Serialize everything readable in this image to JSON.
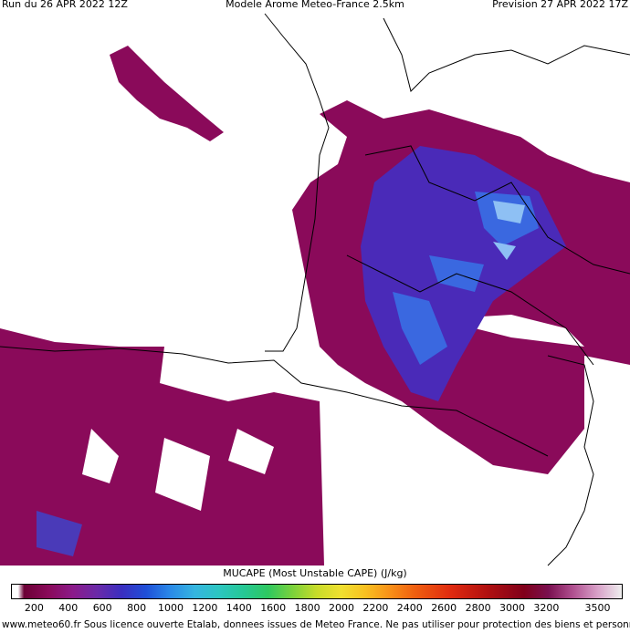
{
  "header": {
    "left": "Run du 26 APR 2022 12Z",
    "center": "Modele Arome Meteo-France 2.5km",
    "right": "Prevision 27 APR 2022 17Z"
  },
  "colorbar": {
    "title": "MUCAPE (Most Unstable CAPE) (J/kg)",
    "ticks": [
      200,
      400,
      600,
      800,
      1000,
      1200,
      1400,
      1600,
      1800,
      2000,
      2200,
      2400,
      2600,
      2800,
      3000,
      3200,
      3500
    ]
  },
  "footer": "www.meteo60.fr Sous licence ouverte Etalab, donnees issues de Meteo France. Ne pas utiliser pour protection des biens et personnes"
}
